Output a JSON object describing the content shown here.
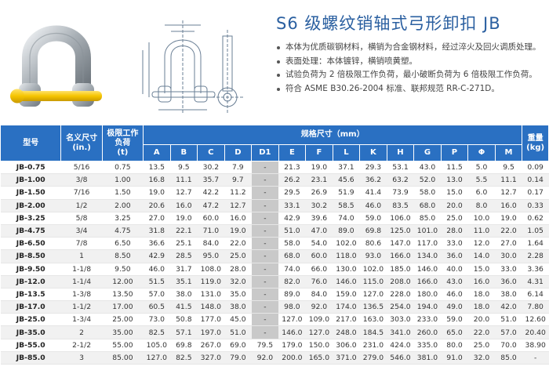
{
  "title": "S6 级螺纹销轴式弓形卸扣 JB",
  "description": [
    "本体为优质碳钢材料，横销为合金钢材料，经过淬火及回火调质处理。",
    "表面处理：本体镀锌，横销喷黄塑。",
    "试验负荷为 2 倍极限工作负荷，最小破断负荷为 6 倍极限工作负荷。",
    "符合 ASME B30.26-2004 标准、联邦规范 RR-C-271D。"
  ],
  "colors": {
    "title": "#2a5fa0",
    "header_bg": "#2a70c2",
    "pin_yellow": "#f5c400",
    "gray_cell": "#c9c9c9"
  },
  "icons": {
    "product": "shackle-photo-image",
    "drawing": "shackle-technical-drawing"
  },
  "table": {
    "headers": {
      "model": "型号",
      "nominal_size": "名义尺寸\n(in.)",
      "wll": "极限工作\n负荷\n(t)",
      "dims": "规格尺寸（mm）",
      "weight": "重量\n(kg)"
    },
    "dim_columns": [
      "A",
      "B",
      "C",
      "D",
      "D1",
      "E",
      "F",
      "L",
      "K",
      "H",
      "G",
      "P",
      "Φ",
      "M"
    ],
    "rows": [
      [
        "JB-0.75",
        "5/16",
        "0.75",
        "13.5",
        "9.5",
        "30.2",
        "7.9",
        "-",
        "21.3",
        "19.0",
        "37.1",
        "29.3",
        "53.1",
        "43.0",
        "11.5",
        "5.0",
        "9.5",
        "0.09"
      ],
      [
        "JB-1.00",
        "3/8",
        "1.00",
        "16.8",
        "11.1",
        "35.7",
        "9.7",
        "-",
        "26.2",
        "23.1",
        "45.6",
        "36.2",
        "63.2",
        "52.0",
        "13.0",
        "5.5",
        "11.1",
        "0.14"
      ],
      [
        "JB-1.50",
        "7/16",
        "1.50",
        "19.0",
        "12.7",
        "42.2",
        "11.2",
        "-",
        "29.5",
        "26.9",
        "51.9",
        "41.4",
        "73.9",
        "58.0",
        "15.0",
        "6.0",
        "12.7",
        "0.17"
      ],
      [
        "JB-2.00",
        "1/2",
        "2.00",
        "20.6",
        "16.0",
        "47.2",
        "12.7",
        "-",
        "33.1",
        "30.2",
        "58.5",
        "46.0",
        "83.5",
        "68.0",
        "20.0",
        "8.0",
        "16.0",
        "0.33"
      ],
      [
        "JB-3.25",
        "5/8",
        "3.25",
        "27.0",
        "19.0",
        "60.0",
        "16.0",
        "-",
        "42.9",
        "39.6",
        "74.0",
        "59.0",
        "106.0",
        "85.0",
        "25.0",
        "10.0",
        "19.0",
        "0.62"
      ],
      [
        "JB-4.75",
        "3/4",
        "4.75",
        "31.8",
        "22.1",
        "71.0",
        "19.0",
        "-",
        "51.0",
        "47.0",
        "89.0",
        "69.8",
        "125.0",
        "101.0",
        "28.0",
        "11.0",
        "22.0",
        "1.05"
      ],
      [
        "JB-6.50",
        "7/8",
        "6.50",
        "36.6",
        "25.1",
        "84.0",
        "22.0",
        "-",
        "58.0",
        "54.0",
        "102.0",
        "80.6",
        "147.0",
        "117.0",
        "33.0",
        "12.0",
        "27.0",
        "1.64"
      ],
      [
        "JB-8.50",
        "1",
        "8.50",
        "42.9",
        "28.5",
        "95.0",
        "25.0",
        "-",
        "68.0",
        "60.0",
        "118.0",
        "93.0",
        "166.0",
        "134.0",
        "36.0",
        "14.0",
        "30.0",
        "2.28"
      ],
      [
        "JB-9.50",
        "1-1/8",
        "9.50",
        "46.0",
        "31.7",
        "108.0",
        "28.0",
        "-",
        "74.0",
        "66.0",
        "130.0",
        "102.0",
        "185.0",
        "146.0",
        "40.0",
        "15.0",
        "33.0",
        "3.36"
      ],
      [
        "JB-12.0",
        "1-1/4",
        "12.00",
        "51.5",
        "35.1",
        "119.0",
        "32.0",
        "-",
        "82.0",
        "76.0",
        "146.0",
        "115.0",
        "208.0",
        "166.0",
        "43.0",
        "16.0",
        "36.0",
        "4.31"
      ],
      [
        "JB-13.5",
        "1-3/8",
        "13.50",
        "57.0",
        "38.0",
        "131.0",
        "35.0",
        "-",
        "89.0",
        "84.0",
        "159.0",
        "127.0",
        "228.0",
        "180.0",
        "46.0",
        "18.0",
        "38.0",
        "6.14"
      ],
      [
        "JB-17.0",
        "1-1/2",
        "17.00",
        "60.5",
        "41.5",
        "148.0",
        "38.0",
        "-",
        "98.0",
        "92.0",
        "174.0",
        "136.5",
        "254.0",
        "194.0",
        "49.0",
        "18.0",
        "42.0",
        "7.80"
      ],
      [
        "JB-25.0",
        "1-3/4",
        "25.00",
        "73.0",
        "50.8",
        "177.0",
        "45.0",
        "-",
        "127.0",
        "109.0",
        "217.0",
        "163.0",
        "303.0",
        "233.0",
        "59.0",
        "20.0",
        "51.0",
        "12.60"
      ],
      [
        "JB-35.0",
        "2",
        "35.00",
        "82.5",
        "57.1",
        "197.0",
        "51.0",
        "-",
        "146.0",
        "127.0",
        "248.0",
        "184.5",
        "341.0",
        "260.0",
        "65.0",
        "22.0",
        "57.0",
        "20.40"
      ],
      [
        "JB-55.0",
        "2-1/2",
        "55.00",
        "105.0",
        "69.8",
        "267.0",
        "69.0",
        "79.5",
        "179.0",
        "150.0",
        "306.0",
        "231.0",
        "424.0",
        "335.0",
        "80.0",
        "25.0",
        "70.0",
        "38.90"
      ],
      [
        "JB-85.0",
        "3",
        "85.00",
        "127.0",
        "82.5",
        "327.0",
        "79.0",
        "92.0",
        "200.0",
        "165.0",
        "371.0",
        "279.0",
        "546.0",
        "381.0",
        "91.0",
        "32.0",
        "85.0",
        "-"
      ]
    ]
  }
}
